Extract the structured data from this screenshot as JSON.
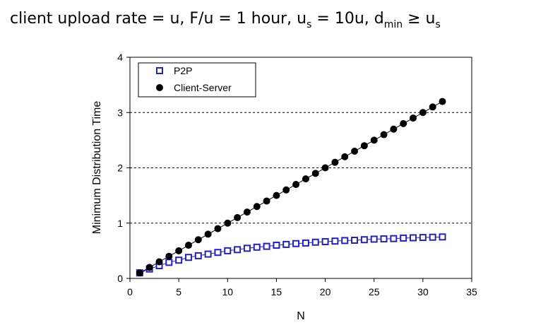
{
  "title": {
    "part1": "client upload rate = u,  F/u = 1 hour,  u",
    "sub1": "s",
    "part2": " = 10u,  d",
    "sub2": "min",
    "part3": " ≥ u",
    "sub3": "s"
  },
  "chart_data": {
    "type": "scatter",
    "xlabel": "N",
    "ylabel": "Minimum Distribution Time",
    "xlim": [
      0,
      35
    ],
    "ylim": [
      0,
      4
    ],
    "xticks": [
      0,
      5,
      10,
      15,
      20,
      25,
      30,
      35
    ],
    "yticks": [
      0,
      1,
      2,
      3,
      4
    ],
    "grid": "dashed horizontal at y=1,2,3",
    "legend_position": "top-left",
    "x": [
      1,
      2,
      3,
      4,
      5,
      6,
      7,
      8,
      9,
      10,
      11,
      12,
      13,
      14,
      15,
      16,
      17,
      18,
      19,
      20,
      21,
      22,
      23,
      24,
      25,
      26,
      27,
      28,
      29,
      30,
      31,
      32
    ],
    "series": [
      {
        "name": "P2P",
        "marker": "open-square",
        "color": "#2323b4",
        "values": [
          0.1,
          0.17,
          0.23,
          0.29,
          0.33,
          0.38,
          0.41,
          0.44,
          0.47,
          0.5,
          0.52,
          0.545,
          0.565,
          0.58,
          0.6,
          0.615,
          0.63,
          0.64,
          0.655,
          0.665,
          0.675,
          0.685,
          0.69,
          0.7,
          0.71,
          0.715,
          0.72,
          0.73,
          0.735,
          0.74,
          0.745,
          0.75
        ]
      },
      {
        "name": "Client-Server",
        "marker": "filled-circle",
        "color": "#000000",
        "values": [
          0.1,
          0.2,
          0.3,
          0.4,
          0.5,
          0.6,
          0.7,
          0.8,
          0.9,
          1.0,
          1.1,
          1.2,
          1.3,
          1.4,
          1.5,
          1.6,
          1.7,
          1.8,
          1.9,
          2.0,
          2.1,
          2.2,
          2.3,
          2.4,
          2.5,
          2.6,
          2.7,
          2.8,
          2.9,
          3.0,
          3.1,
          3.2
        ]
      }
    ]
  }
}
